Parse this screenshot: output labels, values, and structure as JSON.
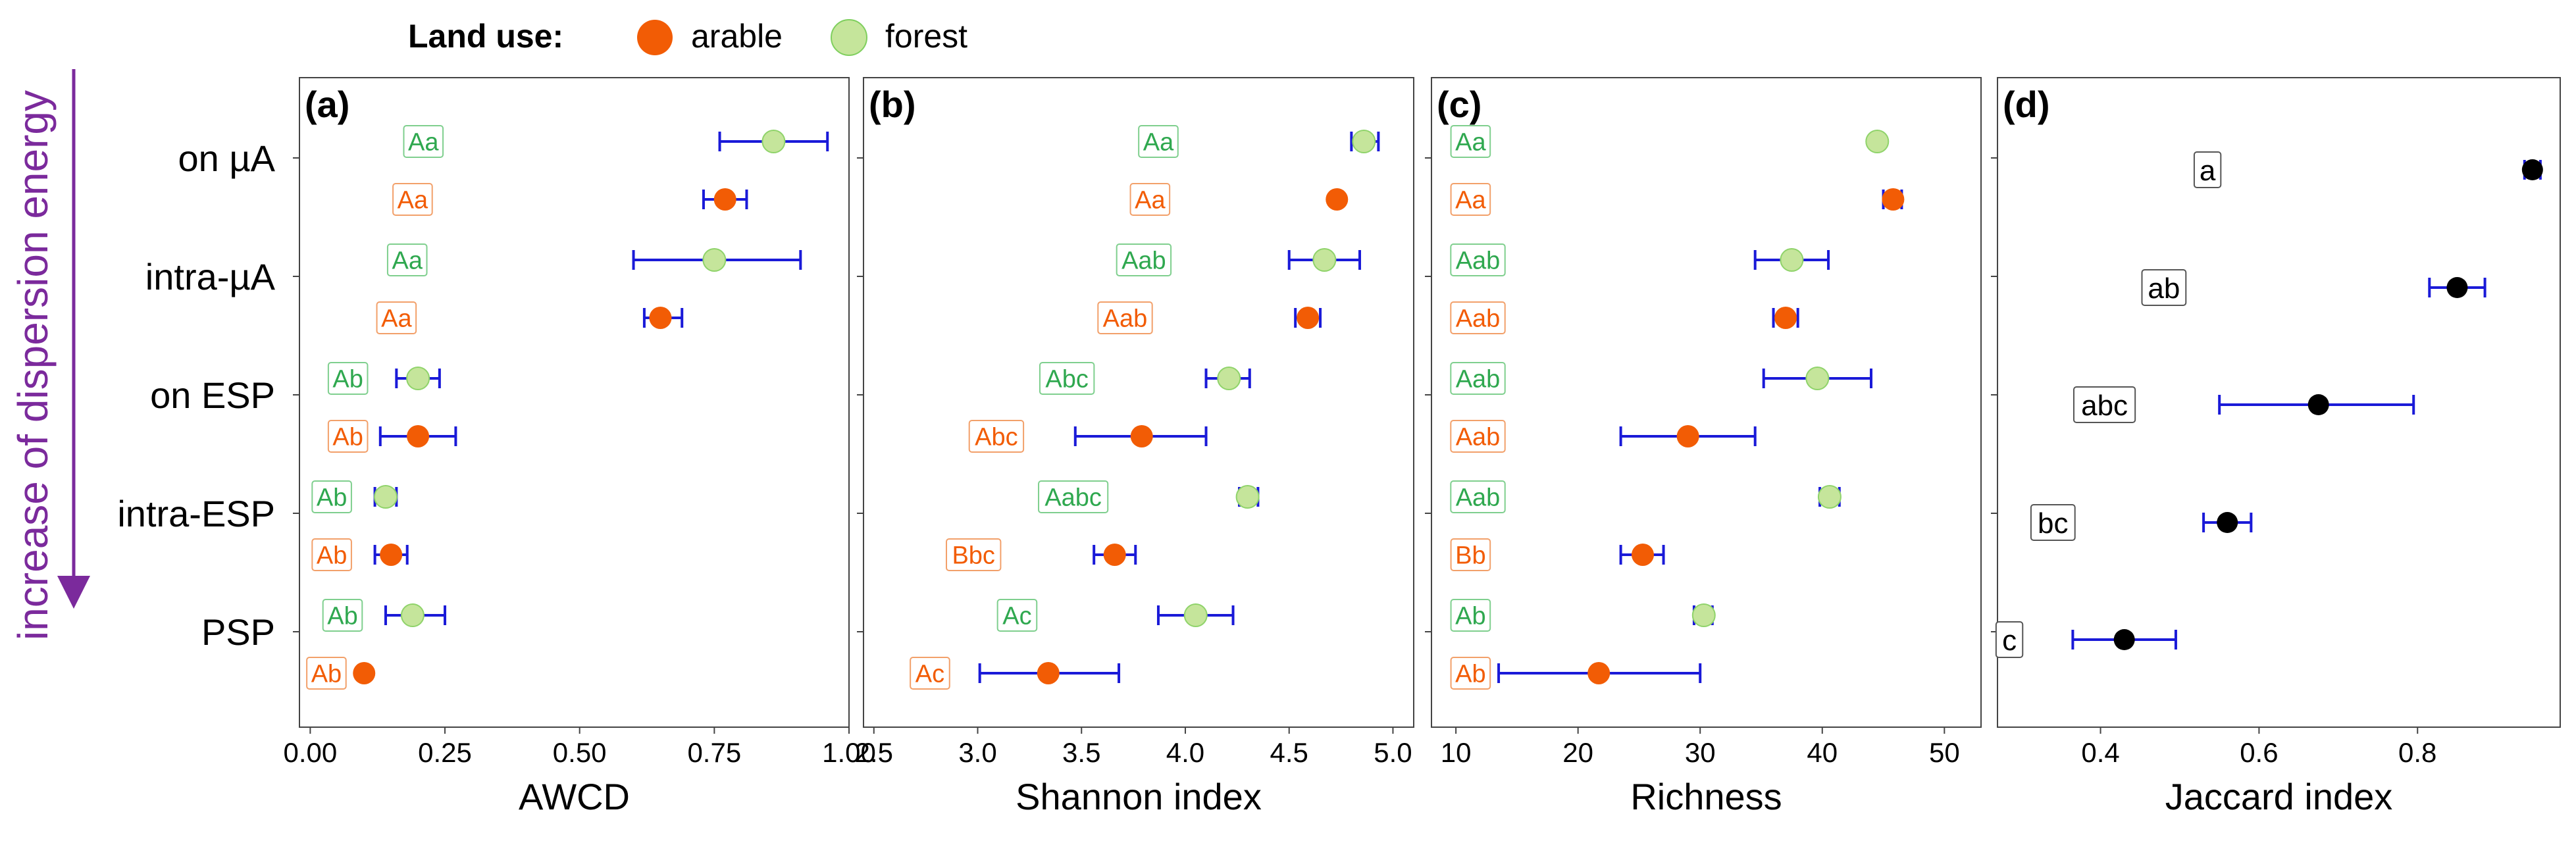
{
  "legend": {
    "title": "Land use:",
    "entries": [
      {
        "label": "arable",
        "color": "#f25c05"
      },
      {
        "label": "forest",
        "color": "#c5e59b"
      }
    ]
  },
  "y_axis": {
    "arrow_label": "increase of dispersion energy",
    "arrow_color": "#7b2a9c",
    "categories": [
      "on µA",
      "intra-µA",
      "on ESP",
      "intra-ESP",
      "PSP"
    ]
  },
  "colors": {
    "arable": "#f25c05",
    "arable_stroke": "#f2a06a",
    "forest": "#c5e59b",
    "forest_stroke": "#2fa84f",
    "error_bar": "#1a1ad8",
    "jaccard_point": "#000000"
  },
  "chart_data": [
    {
      "panel": "(a)",
      "type": "scatter",
      "xlabel": "AWCD",
      "xlim": [
        -0.02,
        1.0
      ],
      "xticks": [
        0.0,
        0.25,
        0.5,
        0.75,
        1.0
      ],
      "xtick_labels": [
        "0.00",
        "0.25",
        "0.50",
        "0.75",
        "1.00"
      ],
      "series": [
        {
          "category": "on µA",
          "land_use": "forest",
          "mean": 0.86,
          "low": 0.76,
          "high": 0.96,
          "letter": "Aa",
          "letter_x": 0.21
        },
        {
          "category": "on µA",
          "land_use": "arable",
          "mean": 0.77,
          "low": 0.73,
          "high": 0.81,
          "letter": "Aa",
          "letter_x": 0.19
        },
        {
          "category": "intra-µA",
          "land_use": "forest",
          "mean": 0.75,
          "low": 0.6,
          "high": 0.91,
          "letter": "Aa",
          "letter_x": 0.18
        },
        {
          "category": "intra-µA",
          "land_use": "arable",
          "mean": 0.65,
          "low": 0.62,
          "high": 0.69,
          "letter": "Aa",
          "letter_x": 0.16
        },
        {
          "category": "on ESP",
          "land_use": "forest",
          "mean": 0.2,
          "low": 0.16,
          "high": 0.24,
          "letter": "Ab",
          "letter_x": 0.07
        },
        {
          "category": "on ESP",
          "land_use": "arable",
          "mean": 0.2,
          "low": 0.13,
          "high": 0.27,
          "letter": "Ab",
          "letter_x": 0.07
        },
        {
          "category": "intra-ESP",
          "land_use": "forest",
          "mean": 0.14,
          "low": 0.12,
          "high": 0.16,
          "letter": "Ab",
          "letter_x": 0.04
        },
        {
          "category": "intra-ESP",
          "land_use": "arable",
          "mean": 0.15,
          "low": 0.12,
          "high": 0.18,
          "letter": "Ab",
          "letter_x": 0.04
        },
        {
          "category": "PSP",
          "land_use": "forest",
          "mean": 0.19,
          "low": 0.14,
          "high": 0.25,
          "letter": "Ab",
          "letter_x": 0.06
        },
        {
          "category": "PSP",
          "land_use": "arable",
          "mean": 0.1,
          "low": 0.1,
          "high": 0.1,
          "letter": "Ab",
          "letter_x": 0.03
        }
      ]
    },
    {
      "panel": "(b)",
      "type": "scatter",
      "xlabel": "Shannon index",
      "xlim": [
        2.45,
        5.1
      ],
      "xticks": [
        2.5,
        3.0,
        3.5,
        4.0,
        4.5,
        5.0
      ],
      "xtick_labels": [
        "2.5",
        "3.0",
        "3.5",
        "4.0",
        "4.5",
        "5.0"
      ],
      "series": [
        {
          "category": "on µA",
          "land_use": "forest",
          "mean": 4.86,
          "low": 4.8,
          "high": 4.93,
          "letter": "Aa",
          "letter_x": 3.87
        },
        {
          "category": "on µA",
          "land_use": "arable",
          "mean": 4.73,
          "low": 4.73,
          "high": 4.73,
          "letter": "Aa",
          "letter_x": 3.83
        },
        {
          "category": "intra-µA",
          "land_use": "forest",
          "mean": 4.67,
          "low": 4.5,
          "high": 4.84,
          "letter": "Aab",
          "letter_x": 3.8
        },
        {
          "category": "intra-µA",
          "land_use": "arable",
          "mean": 4.59,
          "low": 4.53,
          "high": 4.65,
          "letter": "Aab",
          "letter_x": 3.71
        },
        {
          "category": "on ESP",
          "land_use": "forest",
          "mean": 4.21,
          "low": 4.1,
          "high": 4.31,
          "letter": "Abc",
          "letter_x": 3.43
        },
        {
          "category": "on ESP",
          "land_use": "arable",
          "mean": 3.79,
          "low": 3.47,
          "high": 4.1,
          "letter": "Abc",
          "letter_x": 3.09
        },
        {
          "category": "intra-ESP",
          "land_use": "forest",
          "mean": 4.3,
          "low": 4.26,
          "high": 4.35,
          "letter": "Aabc",
          "letter_x": 3.46
        },
        {
          "category": "intra-ESP",
          "land_use": "arable",
          "mean": 3.66,
          "low": 3.56,
          "high": 3.76,
          "letter": "Bbc",
          "letter_x": 2.98
        },
        {
          "category": "PSP",
          "land_use": "forest",
          "mean": 4.05,
          "low": 3.87,
          "high": 4.23,
          "letter": "Ac",
          "letter_x": 3.19
        },
        {
          "category": "PSP",
          "land_use": "arable",
          "mean": 3.34,
          "low": 3.01,
          "high": 3.68,
          "letter": "Ac",
          "letter_x": 2.77
        }
      ]
    },
    {
      "panel": "(c)",
      "type": "scatter",
      "xlabel": "Richness",
      "xlim": [
        8,
        53
      ],
      "xticks": [
        10,
        20,
        30,
        40,
        50
      ],
      "xtick_labels": [
        "10",
        "20",
        "30",
        "40",
        "50"
      ],
      "series": [
        {
          "category": "on µA",
          "land_use": "forest",
          "mean": 44.5,
          "low": 44.5,
          "high": 44.5,
          "letter": "Aa",
          "letter_x": 11.2
        },
        {
          "category": "on µA",
          "land_use": "arable",
          "mean": 45.8,
          "low": 45.0,
          "high": 46.5,
          "letter": "Aa",
          "letter_x": 11.2
        },
        {
          "category": "intra-µA",
          "land_use": "forest",
          "mean": 37.5,
          "low": 34.5,
          "high": 40.5,
          "letter": "Aab",
          "letter_x": 11.8
        },
        {
          "category": "intra-µA",
          "land_use": "arable",
          "mean": 37.0,
          "low": 36.0,
          "high": 38.0,
          "letter": "Aab",
          "letter_x": 11.8
        },
        {
          "category": "on ESP",
          "land_use": "forest",
          "mean": 39.6,
          "low": 35.2,
          "high": 44.0,
          "letter": "Aab",
          "letter_x": 11.8
        },
        {
          "category": "on ESP",
          "land_use": "arable",
          "mean": 29.0,
          "low": 23.5,
          "high": 34.5,
          "letter": "Aab",
          "letter_x": 11.8
        },
        {
          "category": "intra-ESP",
          "land_use": "forest",
          "mean": 40.6,
          "low": 39.8,
          "high": 41.4,
          "letter": "Aab",
          "letter_x": 11.8
        },
        {
          "category": "intra-ESP",
          "land_use": "arable",
          "mean": 25.3,
          "low": 23.5,
          "high": 27.0,
          "letter": "Bb",
          "letter_x": 11.2
        },
        {
          "category": "PSP",
          "land_use": "forest",
          "mean": 30.3,
          "low": 29.5,
          "high": 31.0,
          "letter": "Ab",
          "letter_x": 11.2
        },
        {
          "category": "PSP",
          "land_use": "arable",
          "mean": 21.7,
          "low": 13.5,
          "high": 30.0,
          "letter": "Ab",
          "letter_x": 11.2
        }
      ]
    },
    {
      "panel": "(d)",
      "type": "scatter",
      "xlabel": "Jaccard index",
      "xlim": [
        0.27,
        0.98
      ],
      "xticks": [
        0.4,
        0.6,
        0.8
      ],
      "xtick_labels": [
        "0.4",
        "0.6",
        "0.8"
      ],
      "series": [
        {
          "category": "on µA",
          "mean": 0.945,
          "low": 0.935,
          "high": 0.955,
          "letter": "a",
          "letter_x": 0.535
        },
        {
          "category": "intra-µA",
          "mean": 0.85,
          "low": 0.815,
          "high": 0.885,
          "letter": "ab",
          "letter_x": 0.48
        },
        {
          "category": "on ESP",
          "mean": 0.675,
          "low": 0.55,
          "high": 0.795,
          "letter": "abc",
          "letter_x": 0.405
        },
        {
          "category": "intra-ESP",
          "mean": 0.56,
          "low": 0.53,
          "high": 0.59,
          "letter": "bc",
          "letter_x": 0.34
        },
        {
          "category": "PSP",
          "mean": 0.43,
          "low": 0.365,
          "high": 0.495,
          "letter": "c",
          "letter_x": 0.285
        }
      ]
    }
  ]
}
